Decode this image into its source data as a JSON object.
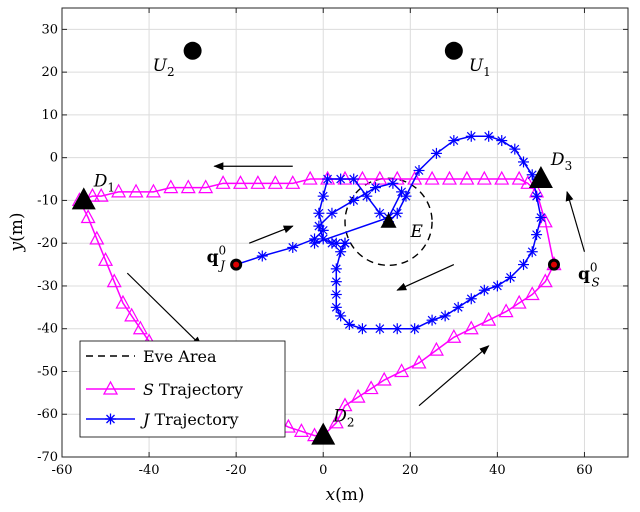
{
  "chart_data": {
    "type": "line",
    "title": "",
    "xlabel": "x(m)",
    "ylabel": "y(m)",
    "xlim": [
      -60,
      70
    ],
    "ylim": [
      -70,
      35
    ],
    "xticks": [
      -60,
      -40,
      -20,
      0,
      20,
      40,
      60
    ],
    "yticks": [
      -70,
      -60,
      -50,
      -40,
      -30,
      -20,
      -10,
      0,
      10,
      20,
      30
    ],
    "grid": true,
    "legend_position": "bottom-left",
    "legend": [
      {
        "key": "eve",
        "label": "Eve Area"
      },
      {
        "key": "s",
        "label": "S Trajectory"
      },
      {
        "key": "j",
        "label": "J Trajectory"
      }
    ],
    "eve_area": {
      "center": [
        15,
        -15
      ],
      "radius": 10,
      "color": "#000000"
    },
    "series": [
      {
        "name": "S Trajectory",
        "color": "#ff00ff",
        "marker": "triangle",
        "x": [
          53,
          51,
          49,
          47,
          45,
          41,
          37,
          33,
          29,
          25,
          21,
          17,
          13,
          9,
          5,
          1,
          -3,
          -7,
          -11,
          -15,
          -19,
          -23,
          -27,
          -31,
          -35,
          -39,
          -43,
          -47,
          -51,
          -53,
          -56,
          -54,
          -52,
          -50,
          -48,
          -46,
          -44,
          -42,
          -40,
          -38,
          -36,
          -33,
          -30,
          -27,
          -24,
          -20,
          -16,
          -12,
          -8,
          -5,
          -2,
          0,
          3,
          5,
          8,
          11,
          14,
          18,
          22,
          26,
          30,
          34,
          38,
          42,
          45,
          48,
          51,
          53
        ],
        "y": [
          -25,
          -15,
          -8,
          -6,
          -5,
          -5,
          -5,
          -5,
          -5,
          -5,
          -5,
          -5,
          -5,
          -5,
          -5,
          -5,
          -5,
          -6,
          -6,
          -6,
          -6,
          -6,
          -7,
          -7,
          -7,
          -8,
          -8,
          -8,
          -9,
          -9,
          -10,
          -14,
          -19,
          -24,
          -29,
          -34,
          -37,
          -40,
          -43,
          -45,
          -47,
          -49,
          -51,
          -53,
          -55,
          -57,
          -59,
          -61,
          -63,
          -64,
          -65,
          -65,
          -62,
          -58,
          -56,
          -54,
          -52,
          -50,
          -48,
          -45,
          -42,
          -40,
          -38,
          -36,
          -34,
          -32,
          -29,
          -25
        ]
      },
      {
        "name": "J Trajectory",
        "color": "#0000ff",
        "marker": "star",
        "x": [
          -20,
          -14,
          -7,
          -2,
          0,
          -1,
          0,
          1,
          4,
          7,
          10,
          13,
          15,
          17,
          19,
          22,
          26,
          30,
          34,
          38,
          41,
          44,
          46,
          48,
          49,
          50,
          49,
          48,
          46,
          43,
          40,
          37,
          34,
          31,
          28,
          25,
          21,
          17,
          13,
          9,
          6,
          4,
          3,
          3,
          3,
          3,
          4,
          5,
          5,
          3,
          2,
          0,
          -1,
          2,
          7,
          12,
          16,
          18,
          15,
          -2
        ],
        "y": [
          -25,
          -23,
          -21,
          -19,
          -17,
          -13,
          -9,
          -5,
          -5,
          -5,
          -9,
          -13,
          -15,
          -13,
          -9,
          -3,
          1,
          4,
          5,
          5,
          4,
          2,
          -1,
          -4,
          -9,
          -14,
          -18,
          -22,
          -25,
          -28,
          -30,
          -31,
          -33,
          -35,
          -37,
          -38,
          -40,
          -40,
          -40,
          -40,
          -39,
          -37,
          -35,
          -32,
          -29,
          -26,
          -22,
          -20,
          -20,
          -20,
          -20,
          -19,
          -16,
          -13,
          -10,
          -7,
          -6,
          -8,
          -14,
          -20
        ]
      }
    ],
    "points": [
      {
        "key": "u2",
        "label_main": "U",
        "label_sub": "2",
        "x": -30,
        "y": 25,
        "shape": "circle",
        "label_side": "left"
      },
      {
        "key": "u1",
        "label_main": "U",
        "label_sub": "1",
        "x": 30,
        "y": 25,
        "shape": "circle",
        "label_side": "right"
      },
      {
        "key": "d1",
        "label_main": "D",
        "label_sub": "1",
        "x": -55,
        "y": -10,
        "shape": "triangle",
        "label_side": "top-right"
      },
      {
        "key": "d2",
        "label_main": "D",
        "label_sub": "2",
        "x": 0,
        "y": -65,
        "shape": "triangle",
        "label_side": "top-right"
      },
      {
        "key": "d3",
        "label_main": "D",
        "label_sub": "3",
        "x": 50,
        "y": -5,
        "shape": "triangle",
        "label_side": "top-right"
      },
      {
        "key": "e",
        "label_main": "E",
        "label_sub": "",
        "x": 15,
        "y": -15,
        "shape": "triangle-small",
        "label_side": "bottom-right"
      },
      {
        "key": "qj",
        "label_main": "q",
        "label_sub": "J",
        "label_sup": "0",
        "x": -20,
        "y": -25,
        "shape": "start-dot",
        "label_side": "left"
      },
      {
        "key": "qs",
        "label_main": "q",
        "label_sub": "S",
        "label_sup": "0",
        "x": 53,
        "y": -25,
        "shape": "start-dot",
        "label_side": "right"
      }
    ],
    "arrows": [
      {
        "from": [
          -7,
          -2
        ],
        "to": [
          -25,
          -2
        ]
      },
      {
        "from": [
          -45,
          -27
        ],
        "to": [
          -28,
          -44
        ]
      },
      {
        "from": [
          22,
          -58
        ],
        "to": [
          38,
          -44
        ]
      },
      {
        "from": [
          30,
          -25
        ],
        "to": [
          17,
          -31
        ]
      },
      {
        "from": [
          -17,
          -20
        ],
        "to": [
          -7,
          -16
        ]
      },
      {
        "from": [
          60,
          -22
        ],
        "to": [
          56,
          -8
        ]
      }
    ]
  }
}
